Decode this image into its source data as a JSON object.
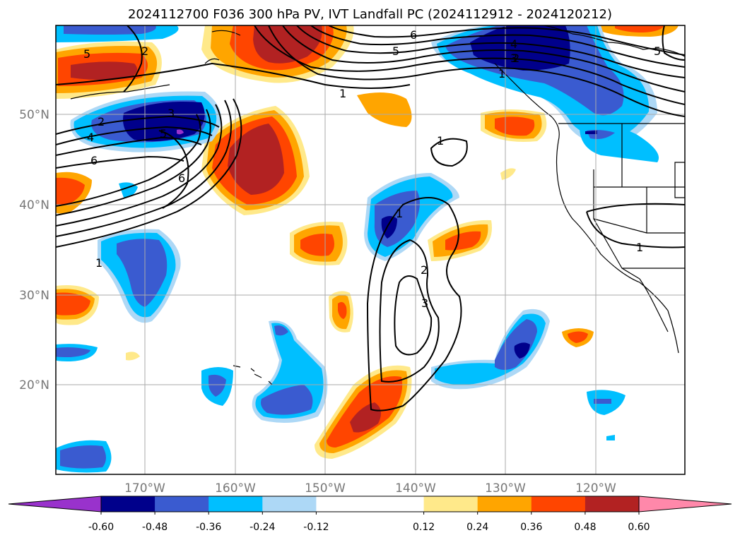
{
  "title": "2024112700 F036 300 hPa PV, IVT Landfall PC (2024112912 - 2024120212)",
  "lat_labels": [
    "50°N",
    "40°N",
    "30°N",
    "20°N"
  ],
  "lon_labels": [
    "170°W",
    "160°W",
    "150°W",
    "140°W",
    "130°W",
    "120°W"
  ],
  "colorbar": {
    "colors": [
      "#9932cc",
      "#00008b",
      "#3a5bd0",
      "#00bfff",
      "#add8f6",
      "#ffffff",
      "#ffffff",
      "#ffe98a",
      "#ffa500",
      "#ff4500",
      "#b22222",
      "#ff88aa"
    ],
    "ticks": [
      "-0.60",
      "-0.48",
      "-0.36",
      "-0.24",
      "-0.12",
      "0.12",
      "0.24",
      "0.36",
      "0.48",
      "0.60"
    ]
  },
  "contour_labels": [
    "2",
    "4",
    "6",
    "5",
    "3",
    "6",
    "5",
    "1",
    "1",
    "6",
    "5",
    "2",
    "4",
    "3",
    "1",
    "1",
    "1",
    "2",
    "3",
    "1",
    "2",
    "5"
  ]
}
